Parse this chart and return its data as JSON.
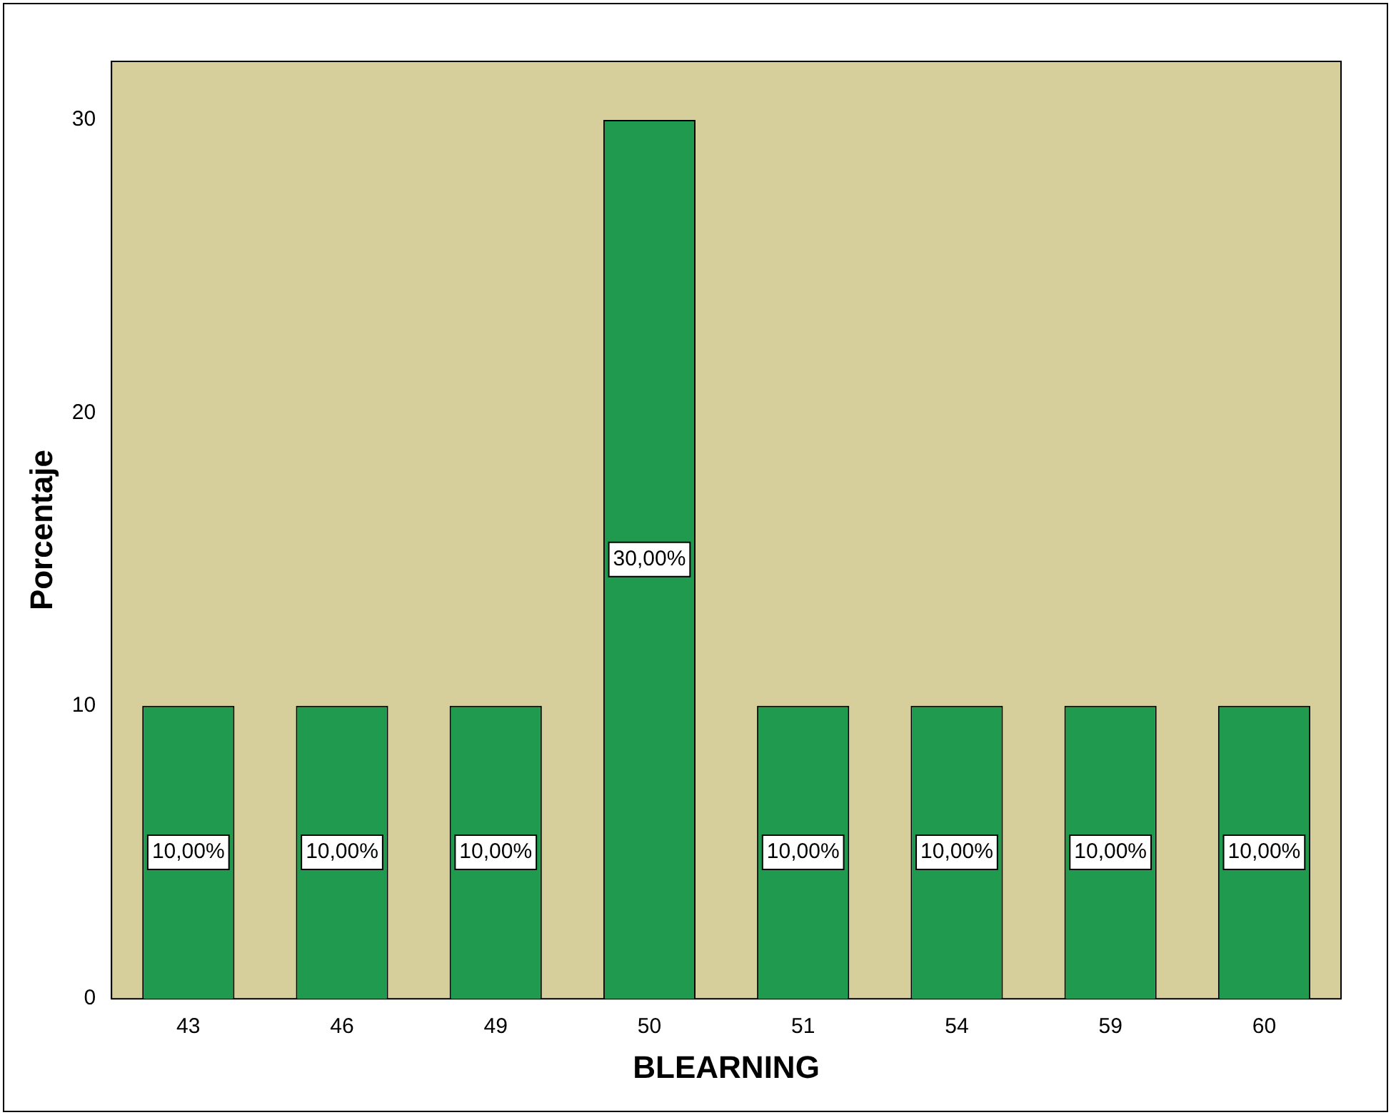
{
  "chart_data": {
    "type": "bar",
    "xlabel": "BLEARNING",
    "ylabel": "Porcentaje",
    "categories": [
      "43",
      "46",
      "49",
      "50",
      "51",
      "54",
      "59",
      "60"
    ],
    "values": [
      10,
      10,
      10,
      30,
      10,
      10,
      10,
      10
    ],
    "value_labels": [
      "10,00%",
      "10,00%",
      "10,00%",
      "30,00%",
      "10,00%",
      "10,00%",
      "10,00%",
      "10,00%"
    ],
    "color": "#1f9a4e",
    "ylim": [
      0,
      32
    ],
    "yticks": [
      0,
      10,
      20,
      30
    ],
    "grid": false,
    "legend": false
  }
}
